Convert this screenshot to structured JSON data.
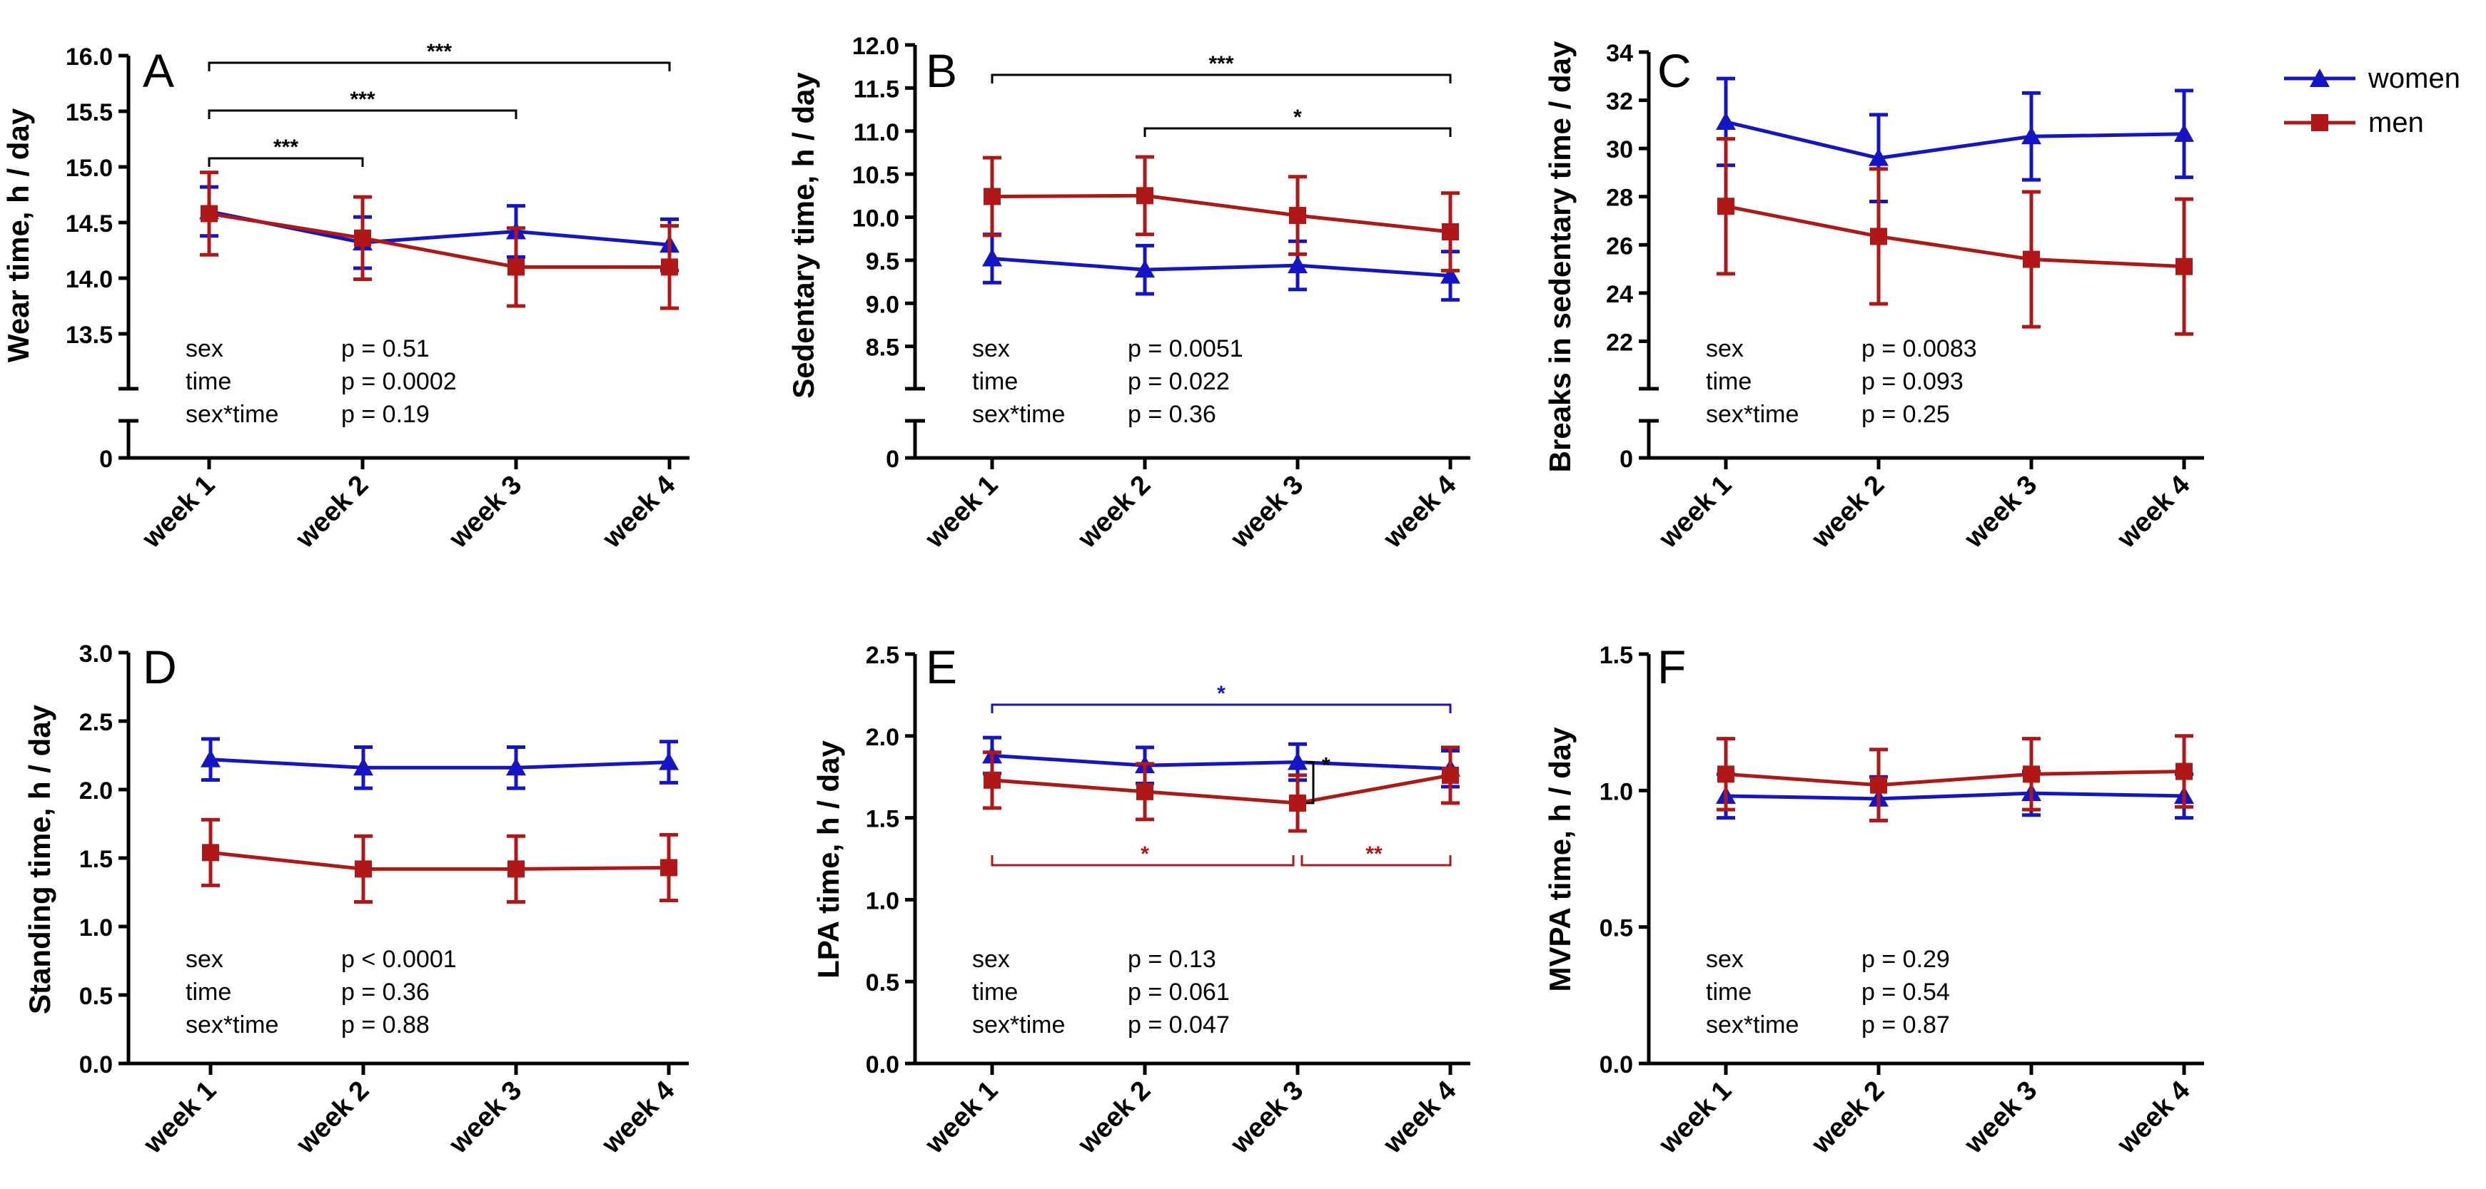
{
  "colors": {
    "women": "#1515c8",
    "men": "#b01818",
    "axis": "#000000"
  },
  "legend": {
    "women": "women",
    "men": "men"
  },
  "chart_data": [
    {
      "panel": "A",
      "type": "line",
      "ylabel": "Wear time, h / day",
      "ylim": [
        13.0,
        16.0
      ],
      "yticks": [
        "16.0",
        "15.5",
        "15.0",
        "14.5",
        "14.0",
        "13.5"
      ],
      "zero_label": "0",
      "categories": [
        "week 1",
        "week 2",
        "week 3",
        "week 4"
      ],
      "series": [
        {
          "name": "women",
          "values": [
            14.6,
            14.32,
            14.42,
            14.3
          ],
          "err": [
            0.22,
            0.23,
            0.23,
            0.23
          ]
        },
        {
          "name": "men",
          "values": [
            14.58,
            14.36,
            14.1,
            14.1
          ],
          "err": [
            0.37,
            0.37,
            0.35,
            0.37
          ]
        }
      ],
      "stats": [
        [
          "sex",
          "p = 0.51"
        ],
        [
          "time",
          "p = 0.0002"
        ],
        [
          "sex*time",
          "p = 0.19"
        ]
      ],
      "brackets": [
        {
          "from": 0,
          "to": 3,
          "label": "***",
          "color": "black",
          "pos": "above"
        },
        {
          "from": 0,
          "to": 2,
          "label": "***",
          "color": "black",
          "pos": "above"
        },
        {
          "from": 0,
          "to": 1,
          "label": "***",
          "color": "black",
          "pos": "above"
        }
      ]
    },
    {
      "panel": "B",
      "type": "line",
      "ylabel": "Sedentary time, h / day",
      "ylim": [
        8.0,
        12.0
      ],
      "yticks": [
        "12.0",
        "11.5",
        "11.0",
        "10.5",
        "10.0",
        "9.5",
        "9.0",
        "8.5"
      ],
      "zero_label": "0",
      "categories": [
        "week 1",
        "week 2",
        "week 3",
        "week 4"
      ],
      "series": [
        {
          "name": "women",
          "values": [
            9.52,
            9.39,
            9.44,
            9.32
          ],
          "err": [
            0.28,
            0.28,
            0.28,
            0.28
          ]
        },
        {
          "name": "men",
          "values": [
            10.24,
            10.25,
            10.02,
            9.83
          ],
          "err": [
            0.45,
            0.45,
            0.45,
            0.45
          ]
        }
      ],
      "stats": [
        [
          "sex",
          "p = 0.0051"
        ],
        [
          "time",
          "p = 0.022"
        ],
        [
          "sex*time",
          "p = 0.36"
        ]
      ],
      "brackets": [
        {
          "from": 0,
          "to": 3,
          "label": "***",
          "color": "black",
          "pos": "above"
        },
        {
          "from": 1,
          "to": 3,
          "label": "*",
          "color": "black",
          "pos": "above"
        }
      ]
    },
    {
      "panel": "C",
      "type": "line",
      "ylabel": "Breaks in sedentary time / day",
      "ylim": [
        20.0,
        34.0
      ],
      "yticks": [
        "34",
        "32",
        "30",
        "28",
        "26",
        "24",
        "22"
      ],
      "zero_label": "0",
      "categories": [
        "week 1",
        "week 2",
        "week 3",
        "week 4"
      ],
      "series": [
        {
          "name": "women",
          "values": [
            31.1,
            29.6,
            30.5,
            30.6
          ],
          "err": [
            1.8,
            1.8,
            1.8,
            1.8
          ]
        },
        {
          "name": "men",
          "values": [
            27.6,
            26.35,
            25.4,
            25.1
          ],
          "err": [
            2.8,
            2.8,
            2.8,
            2.8
          ]
        }
      ],
      "stats": [
        [
          "sex",
          "p = 0.0083"
        ],
        [
          "time",
          "p = 0.093"
        ],
        [
          "sex*time",
          "p = 0.25"
        ]
      ],
      "brackets": []
    },
    {
      "panel": "D",
      "type": "line",
      "ylabel": "Standing time, h / day",
      "ylim": [
        0.0,
        3.0
      ],
      "yticks": [
        "3.0",
        "2.5",
        "2.0",
        "1.5",
        "1.0",
        "0.5",
        "0.0"
      ],
      "zero_label": "",
      "categories": [
        "week 1",
        "week 2",
        "week 3",
        "week 4"
      ],
      "series": [
        {
          "name": "women",
          "values": [
            2.22,
            2.16,
            2.16,
            2.2
          ],
          "err": [
            0.15,
            0.15,
            0.15,
            0.15
          ]
        },
        {
          "name": "men",
          "values": [
            1.54,
            1.42,
            1.42,
            1.43
          ],
          "err": [
            0.24,
            0.24,
            0.24,
            0.24
          ]
        }
      ],
      "stats": [
        [
          "sex",
          "p < 0.0001"
        ],
        [
          "time",
          "p = 0.36"
        ],
        [
          "sex*time",
          "p = 0.88"
        ]
      ],
      "brackets": []
    },
    {
      "panel": "E",
      "type": "line",
      "ylabel": "LPA time, h / day",
      "ylim": [
        0.0,
        2.5
      ],
      "yticks": [
        "2.5",
        "2.0",
        "1.5",
        "1.0",
        "0.5",
        "0.0"
      ],
      "zero_label": "",
      "categories": [
        "week 1",
        "week 2",
        "week 3",
        "week 4"
      ],
      "series": [
        {
          "name": "women",
          "values": [
            1.88,
            1.82,
            1.84,
            1.8
          ],
          "err": [
            0.11,
            0.11,
            0.11,
            0.11
          ]
        },
        {
          "name": "men",
          "values": [
            1.73,
            1.66,
            1.59,
            1.76
          ],
          "err": [
            0.17,
            0.17,
            0.17,
            0.17
          ]
        }
      ],
      "stats": [
        [
          "sex",
          "p = 0.13"
        ],
        [
          "time",
          "p = 0.061"
        ],
        [
          "sex*time",
          "p = 0.047"
        ]
      ],
      "brackets": [
        {
          "from": 0,
          "to": 3,
          "label": "*",
          "color": "women",
          "pos": "above"
        },
        {
          "from": 0,
          "to": 2,
          "label": "*",
          "color": "men",
          "pos": "below"
        },
        {
          "from": 2,
          "to": 3,
          "label": "**",
          "color": "men",
          "pos": "below"
        }
      ],
      "side_bracket": {
        "at": 2,
        "label": "*"
      }
    },
    {
      "panel": "F",
      "type": "line",
      "ylabel": "MVPA time, h / day",
      "ylim": [
        0.0,
        1.5
      ],
      "yticks": [
        "1.5",
        "1.0",
        "0.5",
        "0.0"
      ],
      "zero_label": "",
      "categories": [
        "week 1",
        "week 2",
        "week 3",
        "week 4"
      ],
      "series": [
        {
          "name": "women",
          "values": [
            0.98,
            0.97,
            0.99,
            0.98
          ],
          "err": [
            0.08,
            0.08,
            0.08,
            0.08
          ]
        },
        {
          "name": "men",
          "values": [
            1.06,
            1.02,
            1.06,
            1.07
          ],
          "err": [
            0.13,
            0.13,
            0.13,
            0.13
          ]
        }
      ],
      "stats": [
        [
          "sex",
          "p = 0.29"
        ],
        [
          "time",
          "p = 0.54"
        ],
        [
          "sex*time",
          "p = 0.87"
        ]
      ],
      "brackets": []
    }
  ]
}
